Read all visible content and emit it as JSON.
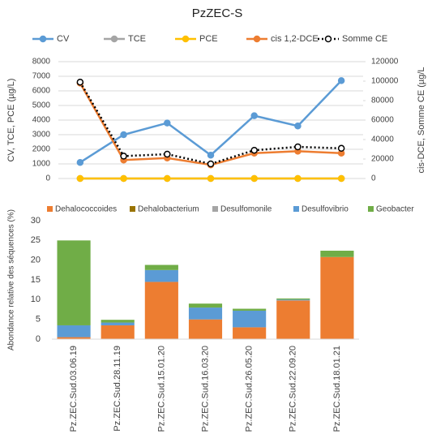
{
  "chart_data": [
    {
      "type": "line",
      "title": "PzZEC-S",
      "ylabel": "CV, TCE, PCE (µg/L)",
      "y2label": "cis-DCE, Somme CE (µg/L",
      "categories": [
        null,
        null,
        null,
        null,
        null,
        null,
        null
      ],
      "ylim": [
        0,
        8000
      ],
      "yticks": [
        0,
        1000,
        2000,
        3000,
        4000,
        5000,
        6000,
        7000,
        8000
      ],
      "y2lim": [
        0,
        120000
      ],
      "y2ticks": [
        0,
        20000,
        40000,
        60000,
        80000,
        100000,
        120000
      ],
      "series": [
        {
          "name": "CV",
          "color": "#5b9bd5",
          "values": [
            1100,
            3000,
            3800,
            1600,
            4300,
            3600,
            6700
          ]
        },
        {
          "name": "TCE",
          "color": "#a5a5a5",
          "values": [
            0,
            0,
            0,
            0,
            0,
            0,
            0
          ]
        },
        {
          "name": "PCE",
          "color": "#ffc000",
          "values": [
            0,
            0,
            0,
            0,
            0,
            0,
            0
          ]
        },
        {
          "name": "cis 1,2-DCE",
          "color": "#ed7d31",
          "axis": "y2",
          "values": [
            98000,
            19000,
            21000,
            14000,
            26000,
            28000,
            26000
          ]
        },
        {
          "name": "Somme CE",
          "color": "#000000",
          "axis": "y2",
          "line_style": "dotted",
          "marker_fill": "#ffffff",
          "values": [
            99000,
            23000,
            25000,
            15000,
            29000,
            32500,
            31000
          ]
        }
      ]
    },
    {
      "type": "stacked_bar",
      "ylabel": "Abondance relative des séquences (%)",
      "categories": [
        "Pz.ZEC.Sud.03.06.19",
        "Pz.ZEC.Sud.28.11.19",
        "Pz.ZEC.Sud.15.01.20",
        "Pz.ZEC.Sud.16.03.20",
        "Pz.ZEC.Sud.26.05.20",
        "Pz.ZEC.Sud.22.09.20",
        "Pz.ZEC.Sud.18.01.21"
      ],
      "ylim": [
        0,
        30
      ],
      "yticks": [
        0,
        5,
        10,
        15,
        20,
        25,
        30
      ],
      "series": [
        {
          "name": "Dehalococcoides",
          "color": "#ed7d31",
          "values": [
            0.5,
            3.5,
            14.5,
            5,
            3,
            9.8,
            20.8
          ]
        },
        {
          "name": "Dehalobacterium",
          "color": "#997300",
          "values": [
            0,
            0,
            0,
            0,
            0,
            0,
            0
          ]
        },
        {
          "name": "Desulfomonile",
          "color": "#a5a5a5",
          "values": [
            0,
            0,
            0,
            0,
            0,
            0,
            0
          ]
        },
        {
          "name": "Desulfovibrio",
          "color": "#5b9bd5",
          "values": [
            3,
            0.7,
            3,
            3,
            4.2,
            0.2,
            0
          ]
        },
        {
          "name": "Geobacter",
          "color": "#70ad47",
          "values": [
            21.5,
            0.7,
            1.3,
            1,
            0.5,
            0.3,
            1.6
          ]
        }
      ]
    }
  ]
}
